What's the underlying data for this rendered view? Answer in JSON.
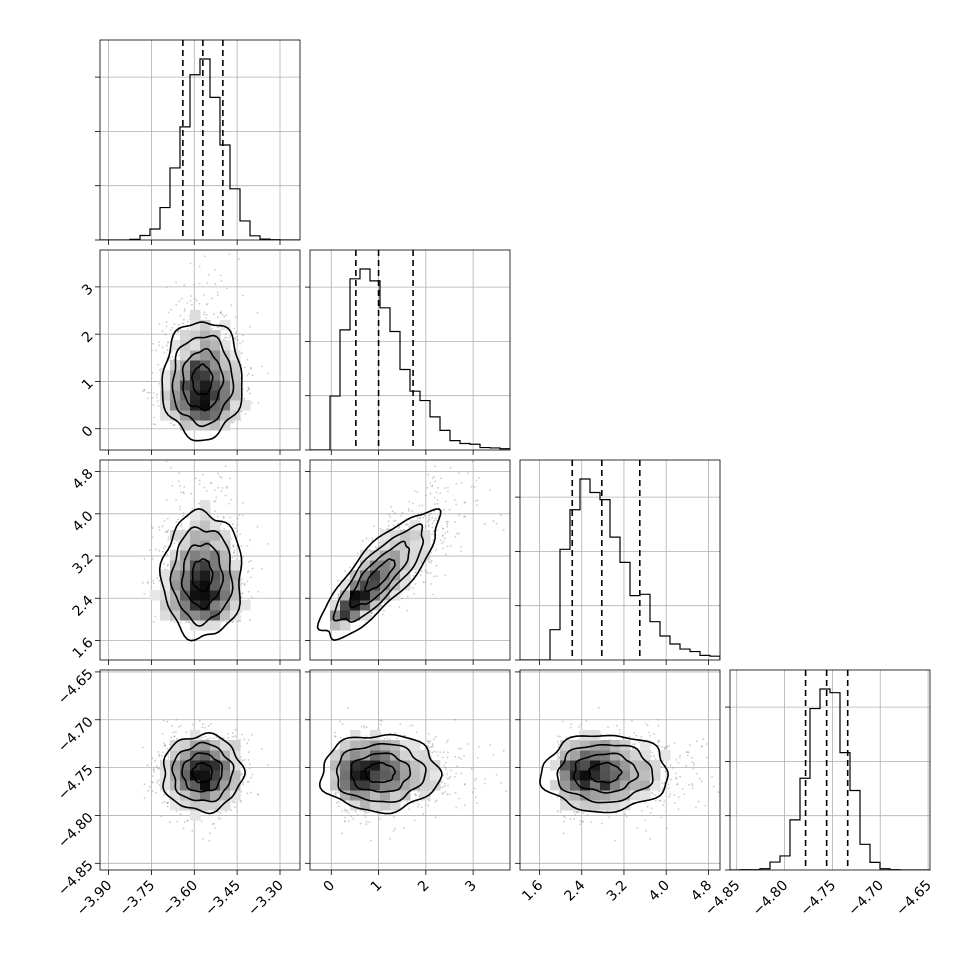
{
  "chart_data": {
    "type": "corner",
    "title": "",
    "grid": true,
    "legend": "none",
    "parameters": [
      {
        "index": 0,
        "mean": -3.57,
        "sd": 0.07,
        "quantiles": [
          -3.64,
          -3.57,
          -3.5
        ],
        "range": [
          -3.93,
          -3.23
        ],
        "ticks": [
          -3.9,
          -3.75,
          -3.6,
          -3.45,
          -3.3
        ],
        "tick_labels": [
          "−3.90",
          "−3.75",
          "−3.60",
          "−3.45",
          "−3.30"
        ]
      },
      {
        "index": 1,
        "mean": 1.05,
        "sd": 0.62,
        "quantiles": [
          0.52,
          1.0,
          1.73
        ],
        "range": [
          -0.45,
          3.78
        ],
        "ticks": [
          0,
          1,
          2,
          3
        ],
        "tick_labels": [
          "0",
          "1",
          "2",
          "3"
        ]
      },
      {
        "index": 2,
        "mean": 2.85,
        "sd": 0.58,
        "quantiles": [
          2.22,
          2.78,
          3.5
        ],
        "range": [
          1.23,
          5.02
        ],
        "ticks": [
          1.6,
          2.4,
          3.2,
          4.0,
          4.8
        ],
        "tick_labels": [
          "1.6",
          "2.4",
          "3.2",
          "4.0",
          "4.8"
        ]
      },
      {
        "index": 3,
        "mean": -4.756,
        "sd": 0.02,
        "quantiles": [
          -4.778,
          -4.756,
          -4.734
        ],
        "range": [
          -4.857,
          -4.648
        ],
        "ticks": [
          -4.85,
          -4.8,
          -4.75,
          -4.7,
          -4.65
        ],
        "tick_labels": [
          "−4.85",
          "−4.80",
          "−4.75",
          "−4.70",
          "−4.65"
        ]
      }
    ],
    "correlations": [
      {
        "pair": [
          0,
          1
        ],
        "rho": 0.0
      },
      {
        "pair": [
          0,
          2
        ],
        "rho": 0.0
      },
      {
        "pair": [
          1,
          2
        ],
        "rho": 0.82
      },
      {
        "pair": [
          0,
          3
        ],
        "rho": 0.0
      },
      {
        "pair": [
          1,
          3
        ],
        "rho": 0.0
      },
      {
        "pair": [
          2,
          3
        ],
        "rho": 0.0
      }
    ],
    "histogram": {
      "bins": 20,
      "style": "step",
      "color": "#000000",
      "quantile_line_style": "dashed"
    },
    "density": {
      "scatter_color": "#8c8c8c",
      "fill_color": "#000000",
      "contour_color": "#000000",
      "contour_levels": 4
    }
  }
}
